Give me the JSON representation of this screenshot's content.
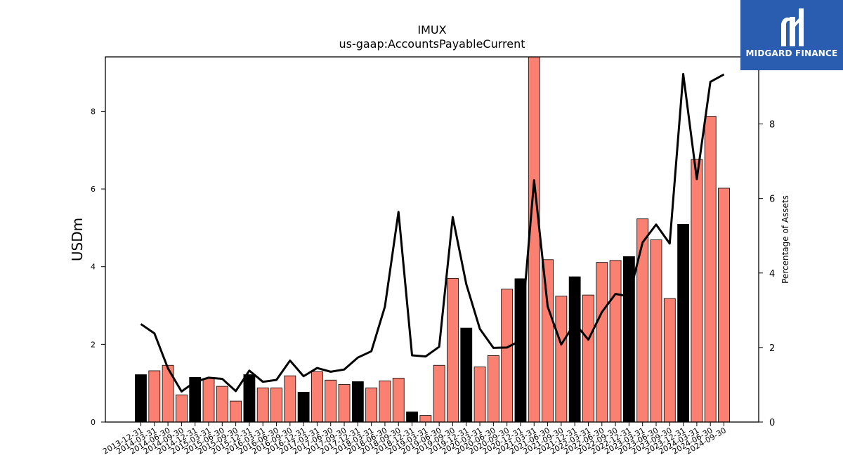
{
  "chart_data": {
    "type": "bar",
    "title": "IMUX",
    "subtitle": "us-gaap:AccountsPayableCurrent",
    "ylabel": "USDm",
    "y2label": "Percentage of Assets",
    "ylim": [
      0,
      9.4
    ],
    "y2lim": [
      0,
      9.8
    ],
    "yticks": [
      0,
      2,
      4,
      6,
      8
    ],
    "y2ticks": [
      0,
      2,
      4,
      6,
      8
    ],
    "colors": {
      "annual": "#000000",
      "quarter": "#fa8072",
      "line": "#000000"
    },
    "categories": [
      "2013-12-31",
      "2014-03-31",
      "2014-06-30",
      "2014-09-30",
      "2014-12-31",
      "2015-03-31",
      "2015-06-30",
      "2015-09-30",
      "2015-12-31",
      "2016-03-31",
      "2016-06-30",
      "2016-09-30",
      "2016-12-31",
      "2017-03-31",
      "2017-06-30",
      "2017-09-30",
      "2017-12-31",
      "2018-03-31",
      "2018-06-30",
      "2018-09-30",
      "2018-12-31",
      "2019-03-31",
      "2019-06-30",
      "2019-09-30",
      "2019-12-31",
      "2020-03-31",
      "2020-06-30",
      "2020-09-30",
      "2020-12-31",
      "2021-03-31",
      "2021-06-30",
      "2021-09-30",
      "2021-12-31",
      "2022-03-31",
      "2022-06-30",
      "2022-09-30",
      "2022-12-31",
      "2023-03-31",
      "2023-06-30",
      "2023-09-30",
      "2023-12-31",
      "2024-03-31",
      "2024-06-30",
      "2024-09-30"
    ],
    "series": [
      {
        "values": [
          1.22,
          1.32,
          1.46,
          0.7,
          1.15,
          1.12,
          0.92,
          0.54,
          1.22,
          0.88,
          0.88,
          1.19,
          0.77,
          1.3,
          1.08,
          0.97,
          1.04,
          0.88,
          1.06,
          1.13,
          0.26,
          0.17,
          1.46,
          3.7,
          2.42,
          1.42,
          1.71,
          3.42,
          3.69,
          9.45,
          4.18,
          3.24,
          3.74,
          3.27,
          4.11,
          4.16,
          4.26,
          5.23,
          4.69,
          3.18,
          5.09,
          6.76,
          7.87,
          6.02
        ],
        "annual": [
          true,
          false,
          false,
          false,
          true,
          false,
          false,
          false,
          true,
          false,
          false,
          false,
          true,
          false,
          false,
          false,
          true,
          false,
          false,
          false,
          true,
          false,
          false,
          false,
          true,
          false,
          false,
          false,
          true,
          false,
          false,
          false,
          true,
          false,
          false,
          false,
          true,
          false,
          false,
          false,
          true,
          false,
          false,
          false
        ]
      },
      {
        "values": [
          2.63,
          2.38,
          1.44,
          0.82,
          1.08,
          1.19,
          1.16,
          0.83,
          1.38,
          1.08,
          1.13,
          1.65,
          1.23,
          1.45,
          1.35,
          1.41,
          1.73,
          1.9,
          3.1,
          5.64,
          1.79,
          1.76,
          2.02,
          5.5,
          3.7,
          2.5,
          1.99,
          2.0,
          2.19,
          6.49,
          3.1,
          2.08,
          2.65,
          2.21,
          2.95,
          3.44,
          3.37,
          4.82,
          5.3,
          4.79,
          9.34,
          6.52,
          9.13,
          9.33
        ]
      }
    ]
  },
  "logo": {
    "text": "MIDGARD FINANCE"
  }
}
